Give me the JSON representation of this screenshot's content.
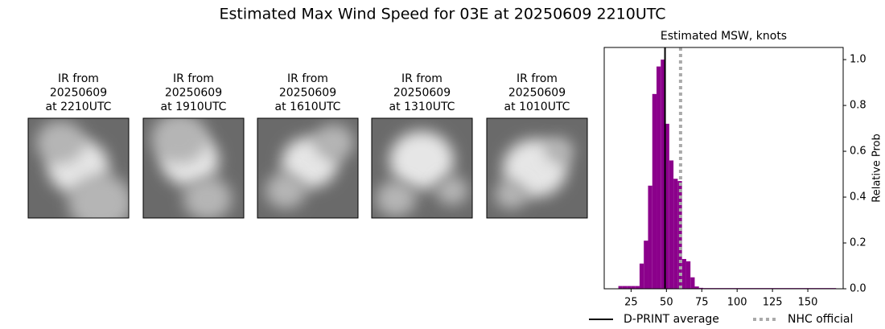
{
  "title": "Estimated Max Wind Speed for 03E at 20250609 2210UTC",
  "panels": [
    {
      "lines": [
        "IR from",
        "20250609",
        "at 2210UTC"
      ]
    },
    {
      "lines": [
        "IR from",
        "20250609",
        "at 1910UTC"
      ]
    },
    {
      "lines": [
        "IR from",
        "20250609",
        "at 1610UTC"
      ]
    },
    {
      "lines": [
        "IR from",
        "20250609",
        "at 1310UTC"
      ]
    },
    {
      "lines": [
        "IR from",
        "20250609",
        "at 1010UTC"
      ]
    }
  ],
  "chart_data": {
    "type": "histogram",
    "title": "Estimated MSW, knots",
    "y_label": "Relative Prob",
    "bins": [
      16,
      19,
      22,
      25,
      28,
      31,
      34,
      37,
      40,
      43,
      46,
      49,
      52,
      55,
      58,
      61,
      64,
      67,
      70,
      73,
      76,
      100,
      125,
      150,
      170
    ],
    "values": [
      0.012,
      0.012,
      0.012,
      0.012,
      0.012,
      0.11,
      0.21,
      0.45,
      0.85,
      0.97,
      1.0,
      0.72,
      0.56,
      0.48,
      0.47,
      0.13,
      0.12,
      0.05,
      0.01,
      0.004,
      0.003,
      0.003,
      0.003,
      0.003
    ],
    "color": "#8b008b",
    "xlim": [
      6,
      175
    ],
    "xticks": [
      25,
      50,
      75,
      100,
      125,
      150
    ],
    "ylim": [
      0,
      1.053
    ],
    "yticks": [
      {
        "value": 0,
        "label": "0.0"
      },
      0.2,
      0.4,
      0.6,
      0.8,
      {
        "value": 1,
        "label": "1.0"
      }
    ],
    "vlines": [
      {
        "name": "D-PRINT average",
        "x": 49,
        "color": "#000000",
        "style": "solid"
      },
      {
        "name": "NHC official",
        "x": 60,
        "color": "#aaaaaa",
        "style": "dotted"
      }
    ]
  }
}
